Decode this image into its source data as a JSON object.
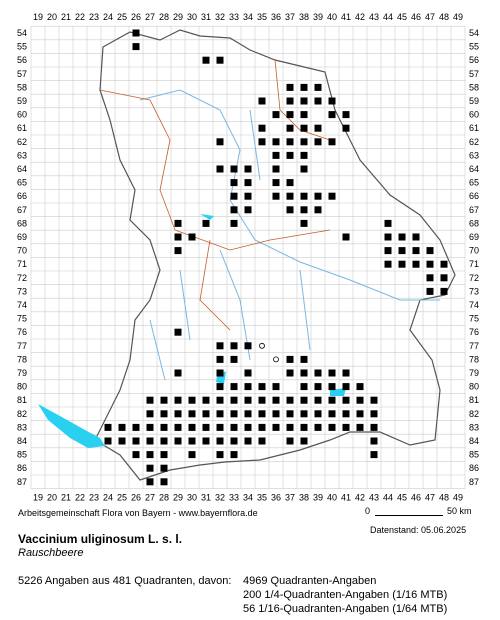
{
  "columns": [
    19,
    20,
    21,
    22,
    23,
    24,
    25,
    26,
    27,
    28,
    29,
    30,
    31,
    32,
    33,
    34,
    35,
    36,
    37,
    38,
    39,
    40,
    41,
    42,
    43,
    44,
    45,
    46,
    47,
    48,
    49
  ],
  "rows": [
    54,
    55,
    56,
    57,
    58,
    59,
    60,
    61,
    62,
    63,
    64,
    65,
    66,
    67,
    68,
    69,
    70,
    71,
    72,
    73,
    74,
    75,
    76,
    77,
    78,
    79,
    80,
    81,
    82,
    83,
    84,
    85,
    86,
    87
  ],
  "occupied": [
    [
      54,
      26,
      26
    ],
    [
      55,
      26,
      26
    ],
    [
      56,
      31,
      32
    ],
    [
      58,
      37,
      39
    ],
    [
      59,
      35,
      35
    ],
    [
      59,
      37,
      40
    ],
    [
      60,
      36,
      38
    ],
    [
      60,
      40,
      41
    ],
    [
      61,
      35,
      35
    ],
    [
      61,
      37,
      39
    ],
    [
      61,
      41,
      41
    ],
    [
      62,
      32,
      32
    ],
    [
      62,
      35,
      40
    ],
    [
      63,
      36,
      38
    ],
    [
      64,
      32,
      34
    ],
    [
      64,
      36,
      36
    ],
    [
      64,
      38,
      38
    ],
    [
      65,
      33,
      34
    ],
    [
      65,
      36,
      37
    ],
    [
      66,
      33,
      34
    ],
    [
      66,
      36,
      40
    ],
    [
      67,
      33,
      34
    ],
    [
      67,
      37,
      39
    ],
    [
      68,
      29,
      29
    ],
    [
      68,
      31,
      31
    ],
    [
      68,
      33,
      33
    ],
    [
      68,
      38,
      38
    ],
    [
      68,
      44,
      44
    ],
    [
      69,
      29,
      30
    ],
    [
      69,
      41,
      41
    ],
    [
      69,
      44,
      46
    ],
    [
      70,
      29,
      29
    ],
    [
      70,
      44,
      47
    ],
    [
      71,
      44,
      48
    ],
    [
      72,
      47,
      48
    ],
    [
      73,
      47,
      48
    ],
    [
      76,
      29,
      29
    ],
    [
      77,
      32,
      34
    ],
    [
      78,
      32,
      33
    ],
    [
      78,
      37,
      38
    ],
    [
      79,
      29,
      29
    ],
    [
      79,
      32,
      32
    ],
    [
      79,
      34,
      34
    ],
    [
      79,
      37,
      41
    ],
    [
      80,
      32,
      36
    ],
    [
      80,
      38,
      42
    ],
    [
      81,
      27,
      43
    ],
    [
      82,
      27,
      43
    ],
    [
      83,
      24,
      43
    ],
    [
      84,
      24,
      35
    ],
    [
      84,
      37,
      38
    ],
    [
      84,
      43,
      43
    ],
    [
      85,
      26,
      28
    ],
    [
      85,
      30,
      30
    ],
    [
      85,
      32,
      33
    ],
    [
      85,
      43,
      43
    ],
    [
      86,
      27,
      28
    ],
    [
      87,
      27,
      28
    ]
  ],
  "open": [
    [
      77,
      35
    ],
    [
      78,
      36
    ]
  ],
  "credit": "Arbeitsgemeinschaft Flora von Bayern - www.bayernflora.de",
  "scale": {
    "start": "0",
    "end": "50 km"
  },
  "date": "Datenstand: 05.06.2025",
  "title": "Vaccinium uliginosum L. s. l.",
  "subtitle": "Rauschbeere",
  "summary": "5226 Angaben aus 481 Quadranten, davon:",
  "details": [
    "4969 Quadranten-Angaben",
    "200 1/4-Quadranten-Angaben (1/16 MTB)",
    "56 1/16-Quadranten-Angaben (1/64 MTB)"
  ]
}
